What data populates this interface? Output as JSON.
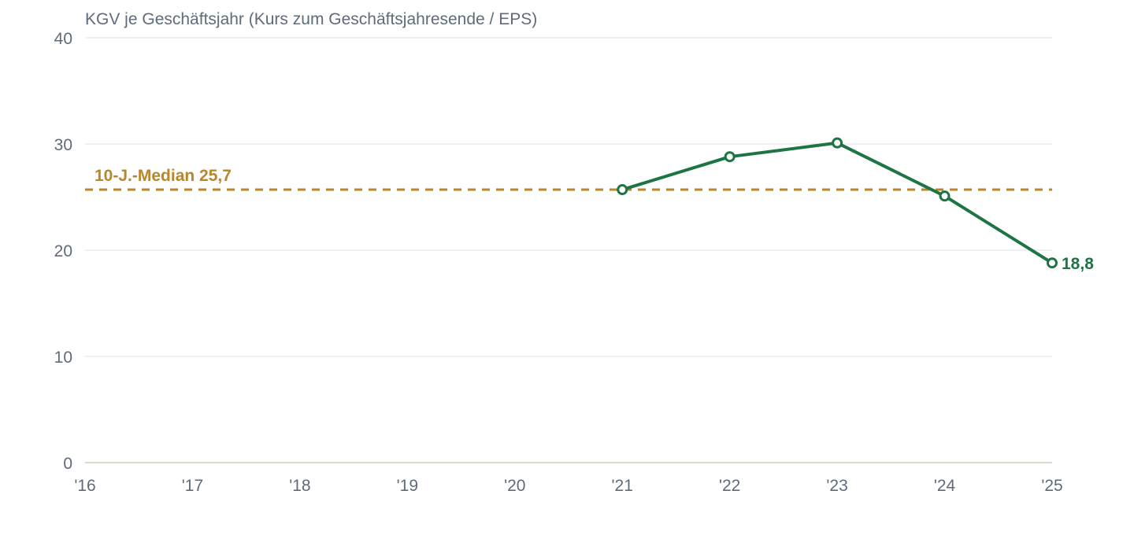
{
  "chart_data": {
    "type": "line",
    "title": "KGV je Geschäftsjahr (Kurs zum Geschäftsjahresende / EPS)",
    "categories": [
      "'16",
      "'17",
      "'18",
      "'19",
      "'20",
      "'21",
      "'22",
      "'23",
      "'24",
      "'25"
    ],
    "series": [
      {
        "values": [
          null,
          null,
          null,
          null,
          null,
          25.7,
          28.8,
          30.1,
          25.1,
          18.8
        ],
        "color": "#1e7544"
      }
    ],
    "last_value_label": "18,8",
    "reference_line": {
      "value": 25.7,
      "label": "10-J.-Median 25,7",
      "color": "#b8862b"
    },
    "yticks": [
      "0",
      "10",
      "20",
      "30",
      "40"
    ],
    "ylim": [
      0,
      40
    ],
    "grid": true,
    "xlabel": "",
    "ylabel": ""
  }
}
